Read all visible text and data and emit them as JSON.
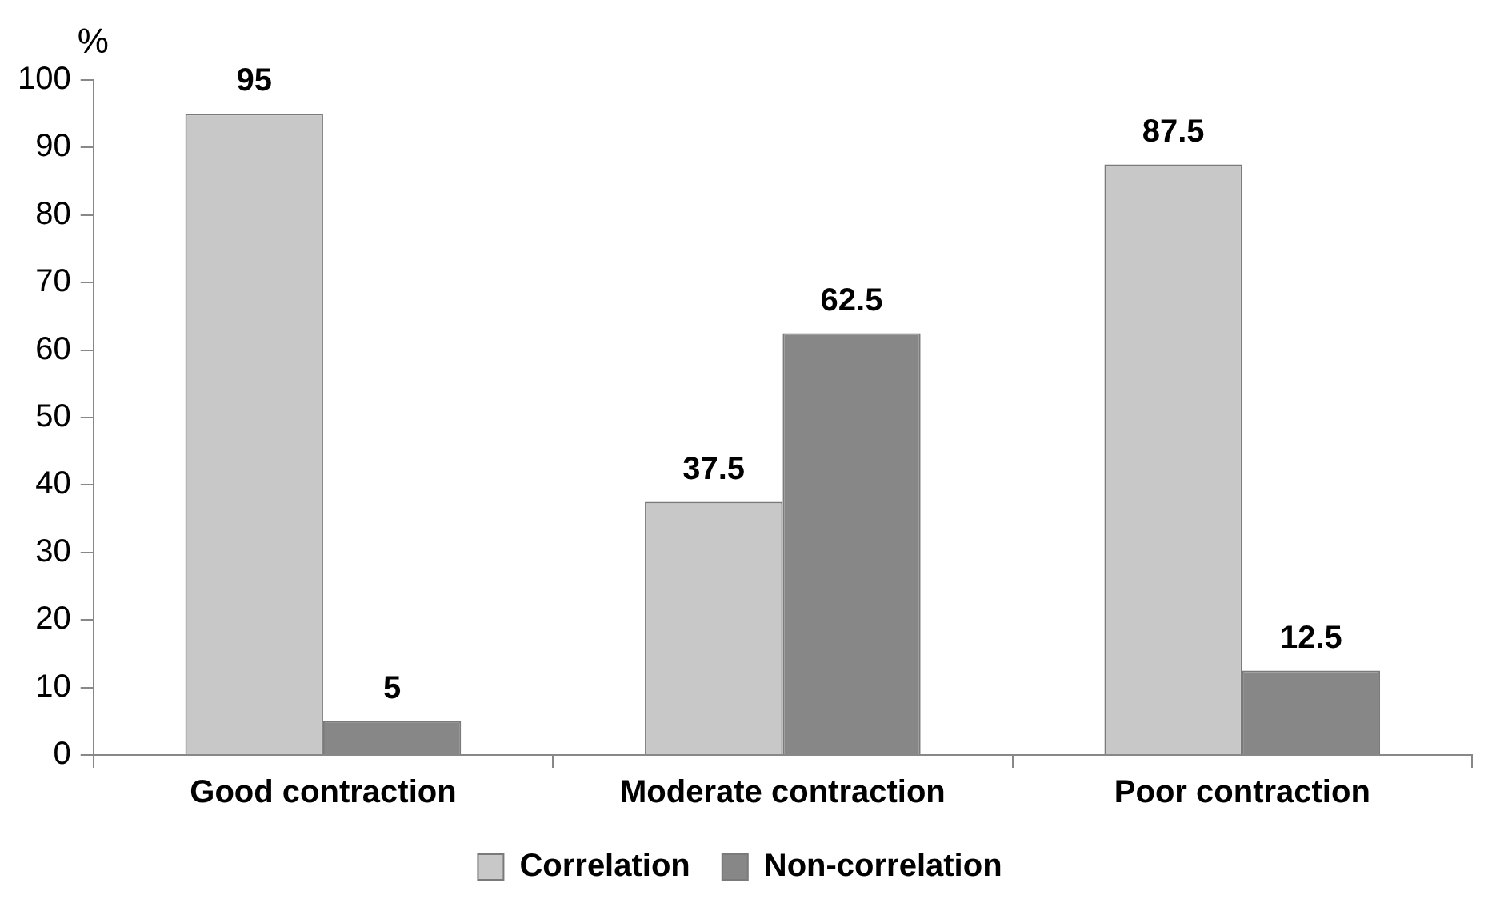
{
  "chart_data": {
    "type": "bar",
    "ylabel": "%",
    "categories": [
      "Good contraction",
      "Moderate contraction",
      "Poor contraction"
    ],
    "series": [
      {
        "name": "Correlation",
        "color": "#c8c8c8",
        "values": [
          95,
          37.5,
          87.5
        ]
      },
      {
        "name": "Non-correlation",
        "color": "#878787",
        "values": [
          5,
          62.5,
          12.5
        ]
      }
    ],
    "ylim": [
      0,
      100
    ],
    "yticks": [
      0,
      10,
      20,
      30,
      40,
      50,
      60,
      70,
      80,
      90,
      100
    ],
    "grid": false,
    "legend": "bottom",
    "data_labels": true
  }
}
